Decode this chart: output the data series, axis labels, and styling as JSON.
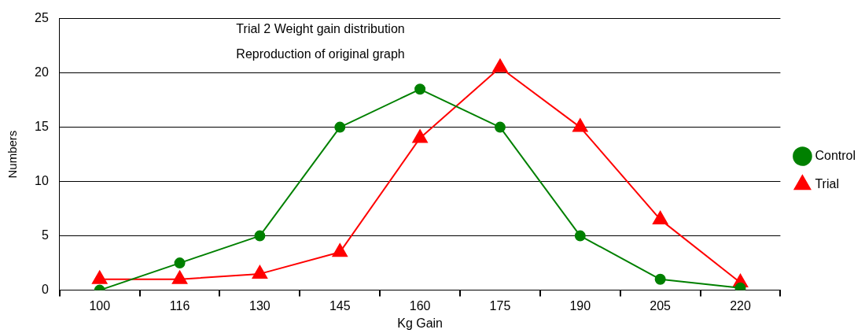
{
  "chart_data": {
    "type": "line",
    "title": "Trial 2 Weight gain distribution",
    "subtitle": "Reproduction of original graph",
    "xlabel": "Kg Gain",
    "ylabel": "Numbers",
    "categories": [
      "100",
      "116",
      "130",
      "145",
      "160",
      "175",
      "190",
      "205",
      "220"
    ],
    "series": [
      {
        "name": "Trial",
        "color": "#ff0000",
        "marker": "triangle",
        "values": [
          1,
          1,
          1.5,
          3.5,
          14,
          20.5,
          15,
          6.5,
          0.7
        ]
      },
      {
        "name": "Control",
        "color": "#008000",
        "marker": "circle",
        "values": [
          0,
          2.5,
          5,
          15,
          18.5,
          15,
          5,
          1,
          0.2
        ]
      }
    ],
    "ylim": [
      0,
      25
    ],
    "yticks": [
      0,
      5,
      10,
      15,
      20,
      25
    ],
    "grid": "y",
    "legend": "right",
    "line_style": "solid"
  }
}
